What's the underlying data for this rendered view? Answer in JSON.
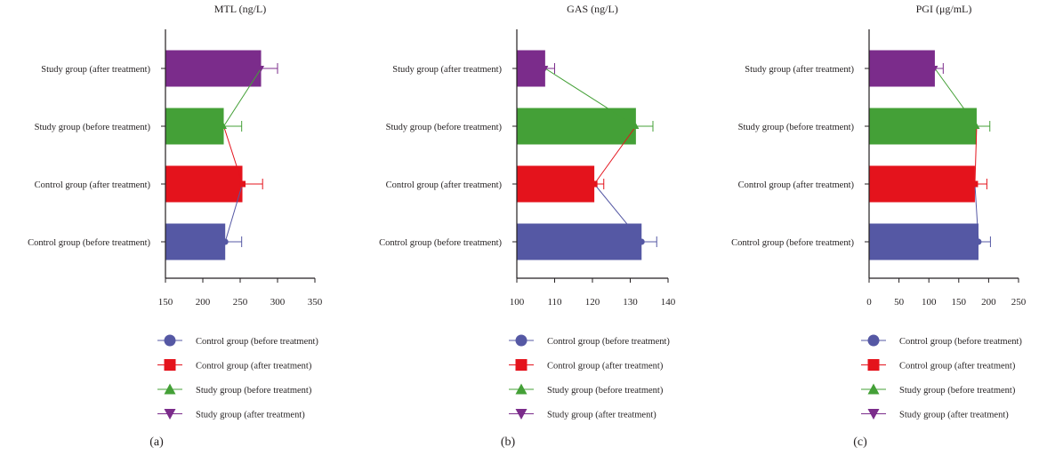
{
  "colors": {
    "control_before": "#5558a4",
    "control_after": "#e4131c",
    "study_before": "#44a037",
    "study_after": "#7b2c8b",
    "axis": "#231f20"
  },
  "legend": {
    "items": [
      {
        "label": "Control group (before treatment)",
        "marker": "circle",
        "color_key": "control_before"
      },
      {
        "label": "Control group (after treatment)",
        "marker": "square",
        "color_key": "control_after"
      },
      {
        "label": "Study group (before treatment)",
        "marker": "triangle-up",
        "color_key": "study_before"
      },
      {
        "label": "Study group (after treatment)",
        "marker": "triangle-down",
        "color_key": "study_after"
      }
    ]
  },
  "chart_data": [
    {
      "type": "bar",
      "orientation": "horizontal",
      "panel_label": "(a)",
      "title": "MTL (ng/L)",
      "categories": [
        "Study group (after treatment)",
        "Study group (before treatment)",
        "Control group (after treatment)",
        "Control group (before treatment)"
      ],
      "values": [
        278,
        228,
        253,
        230
      ],
      "errors": [
        22,
        24,
        27,
        22
      ],
      "xlim": [
        150,
        350
      ],
      "xticks": [
        150,
        200,
        250,
        300,
        350
      ]
    },
    {
      "type": "bar",
      "orientation": "horizontal",
      "panel_label": "(b)",
      "title": "GAS (ng/L)",
      "categories": [
        "Study group (after treatment)",
        "Study group (before treatment)",
        "Control group (after treatment)",
        "Control group (before treatment)"
      ],
      "values": [
        107.5,
        131.5,
        120.5,
        133
      ],
      "errors": [
        2.5,
        4.5,
        2.5,
        4
      ],
      "xlim": [
        100,
        140
      ],
      "xticks": [
        100,
        110,
        120,
        130,
        140
      ]
    },
    {
      "type": "bar",
      "orientation": "horizontal",
      "panel_label": "(c)",
      "title": "PGI (μg/mL)",
      "categories": [
        "Study group (after treatment)",
        "Study group (before treatment)",
        "Control group (after treatment)",
        "Control group (before treatment)"
      ],
      "values": [
        110,
        180,
        177,
        183
      ],
      "errors": [
        14,
        22,
        20,
        20
      ],
      "xlim": [
        0,
        250
      ],
      "xticks": [
        0,
        50,
        100,
        150,
        200,
        250
      ]
    }
  ]
}
